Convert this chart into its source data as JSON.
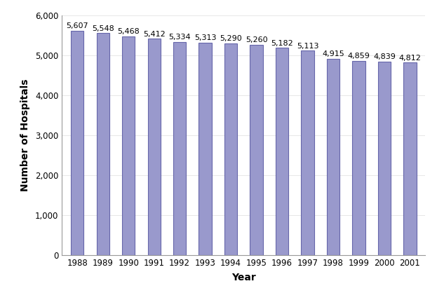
{
  "years": [
    1988,
    1989,
    1990,
    1991,
    1992,
    1993,
    1994,
    1995,
    1996,
    1997,
    1998,
    1999,
    2000,
    2001
  ],
  "values": [
    5607,
    5548,
    5468,
    5412,
    5334,
    5313,
    5290,
    5260,
    5182,
    5113,
    4915,
    4859,
    4839,
    4812
  ],
  "bar_color": "#9999cc",
  "bar_edge_color": "#6666aa",
  "xlabel": "Year",
  "ylabel": "Number of Hospitals",
  "ylim": [
    0,
    6000
  ],
  "yticks": [
    0,
    1000,
    2000,
    3000,
    4000,
    5000,
    6000
  ],
  "background_color": "#ffffff",
  "label_fontsize": 8,
  "axis_label_fontsize": 10,
  "bar_width": 0.5
}
